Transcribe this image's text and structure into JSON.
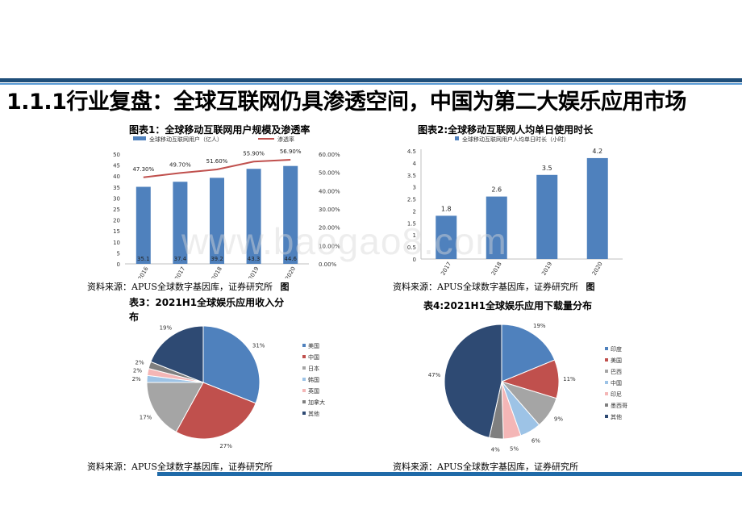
{
  "page": {
    "title": "1.1.1行业复盘：全球互联网仍具渗透空间，中国为第二大娱乐应用市场",
    "watermark": "www.baogao8.com"
  },
  "captions": {
    "c1": "图表1：全球移动互联网用户规模及渗透率",
    "c2": "图表2:全球移动互联网人均单日使用时长",
    "c3": "表3：2021H1全球娱乐应用收入分布",
    "c4": "表4:2021H1全球娱乐应用下载量分布"
  },
  "sources": {
    "s1": "资料来源：APUS全球数字基因库，证券研究所",
    "s1_tail": "图",
    "s2": "资料来源：APUS全球数字基因库，证券研究所",
    "s2_tail": "图",
    "s3": "资料来源：APUS全球数字基因库，证券研究所",
    "s4": "资料来源：APUS全球数字基因库，证券研究所"
  },
  "colors": {
    "blue": "#4f81bd",
    "red": "#c0504d",
    "navy": "#1f4e79"
  },
  "chart_data": [
    {
      "type": "bar",
      "legend": [
        "全球移动互联网用户（亿人）",
        "渗透率"
      ],
      "categories": [
        "2016",
        "2017",
        "2018",
        "2019",
        "2020"
      ],
      "series": [
        {
          "name": "全球移动互联网用户（亿人）",
          "values": [
            35.1,
            37.4,
            39.2,
            43.3,
            44.6
          ],
          "labels": [
            "35.1",
            "37.4",
            "39.2",
            "43.3",
            "44.6"
          ]
        },
        {
          "name": "渗透率",
          "values": [
            47.3,
            49.7,
            51.6,
            55.9,
            56.9
          ],
          "labels": [
            "47.30%",
            "49.70%",
            "51.60%",
            "55.90%",
            "56.90%"
          ]
        }
      ],
      "ylim": [
        0,
        50
      ],
      "y_ticks": [
        "50",
        "45",
        "40",
        "35",
        "30",
        "25",
        "20",
        "15",
        "10",
        "5",
        "0"
      ],
      "y2lim": [
        0,
        60
      ],
      "y2_ticks": [
        "60.00%",
        "50.00%",
        "40.00%",
        "30.00%",
        "20.00%",
        "10.00%",
        "0.00%"
      ]
    },
    {
      "type": "bar",
      "legend": [
        "全球移动互联网用户人均单日时长（小时）"
      ],
      "categories": [
        "2017",
        "2018",
        "2019",
        "2020"
      ],
      "values": [
        1.8,
        2.6,
        3.5,
        4.2
      ],
      "labels": [
        "1.8",
        "2.6",
        "3.5",
        "4.2"
      ],
      "ylim": [
        0,
        4.5
      ],
      "y_ticks": [
        "4.5",
        "4",
        "3.5",
        "3",
        "2.5",
        "2",
        "1.5",
        "1",
        "0.5",
        "0"
      ]
    },
    {
      "type": "pie",
      "legend": [
        "美国",
        "中国",
        "日本",
        "韩国",
        "英国",
        "加拿大",
        "其他"
      ],
      "values": [
        31,
        27,
        17,
        2,
        2,
        2,
        19
      ],
      "labels": [
        "31%",
        "27%",
        "17%",
        "2%",
        "2%",
        "2%",
        "19%"
      ],
      "colors": [
        "#4f81bd",
        "#c0504d",
        "#a5a5a5",
        "#9dc3e6",
        "#f4b6b6",
        "#7f7f7f",
        "#2e4a73"
      ]
    },
    {
      "type": "pie",
      "legend": [
        "印度",
        "美国",
        "巴西",
        "中国",
        "印尼",
        "墨西哥",
        "其他"
      ],
      "values": [
        19,
        11,
        9,
        6,
        5,
        4,
        47
      ],
      "labels": [
        "19%",
        "11%",
        "9%",
        "6%",
        "5%",
        "4%",
        "47%"
      ],
      "colors": [
        "#4f81bd",
        "#c0504d",
        "#a5a5a5",
        "#9dc3e6",
        "#f4b6b6",
        "#7f7f7f",
        "#2e4a73"
      ]
    }
  ]
}
